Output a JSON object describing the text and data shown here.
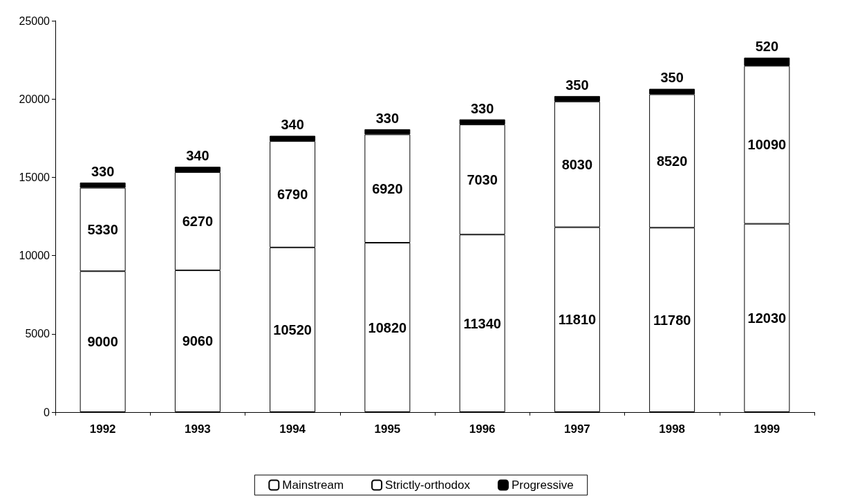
{
  "chart_data": {
    "type": "bar",
    "stacked": true,
    "categories": [
      "1992",
      "1993",
      "1994",
      "1995",
      "1996",
      "1997",
      "1998",
      "1999"
    ],
    "series": [
      {
        "name": "Mainstream",
        "color": "#ffffff",
        "values": [
          9000,
          9060,
          10520,
          10820,
          11340,
          11810,
          11780,
          12030
        ]
      },
      {
        "name": "Strictly-orthodox",
        "color": "#ffffff",
        "values": [
          5330,
          6270,
          6790,
          6920,
          7030,
          8030,
          8520,
          10090
        ]
      },
      {
        "name": "Progressive",
        "color": "#000000",
        "values": [
          330,
          340,
          340,
          330,
          330,
          350,
          350,
          520
        ]
      }
    ],
    "ylim": [
      0,
      25000
    ],
    "yticks": [
      0,
      5000,
      10000,
      15000,
      20000,
      25000
    ],
    "grid": false,
    "legend": "bottom",
    "data_labels": true
  }
}
